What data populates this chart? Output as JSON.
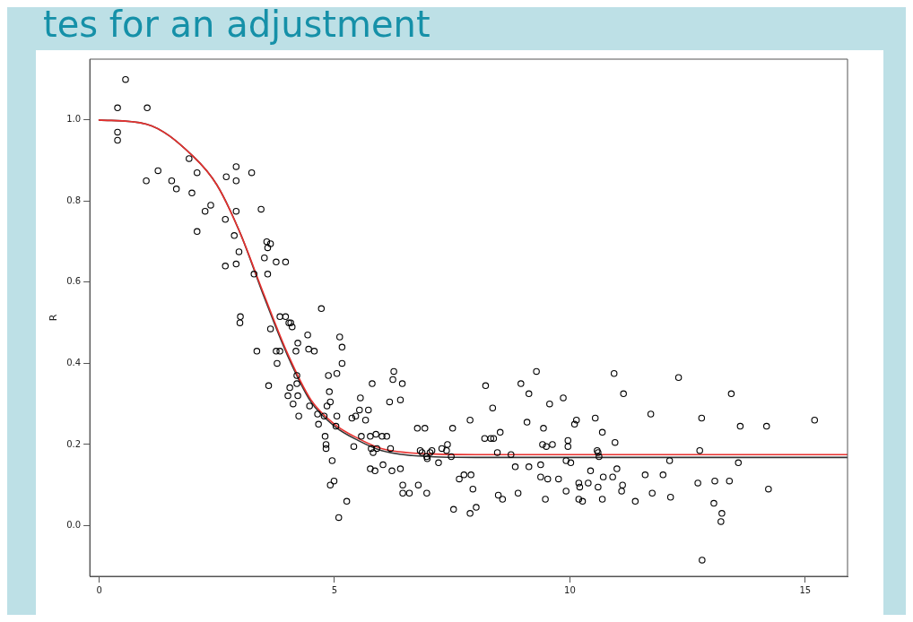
{
  "chart_data": {
    "type": "scatter",
    "title": "tes for an adjustment",
    "ylabel": "R",
    "xlim": [
      -0.2,
      15.9
    ],
    "ylim": [
      -0.125,
      1.15
    ],
    "xticks": [
      0,
      5,
      10,
      15
    ],
    "yticks": [
      {
        "value": 0,
        "label": "0.0"
      },
      0.2,
      0.4,
      0.6,
      0.8,
      {
        "value": 1,
        "label": "1.0"
      }
    ],
    "grid": false,
    "legend": false,
    "marker": "circle",
    "series": [
      {
        "type": "scatter",
        "color": "#000000",
        "x": [
          0.39,
          0.56,
          0.39,
          0.39,
          1.02,
          1.0,
          1.25,
          1.54,
          1.64,
          1.91,
          1.97,
          2.08,
          2.08,
          2.25,
          2.37,
          2.68,
          2.68,
          2.7,
          2.91,
          2.91,
          2.91,
          2.87,
          2.91,
          2.97,
          3.0,
          2.99,
          3.24,
          3.29,
          3.35,
          3.44,
          3.51,
          3.56,
          3.58,
          3.64,
          3.58,
          3.6,
          3.64,
          3.76,
          3.76,
          3.78,
          3.84,
          3.84,
          3.96,
          3.96,
          4.01,
          4.03,
          4.07,
          4.05,
          4.1,
          4.12,
          4.18,
          4.22,
          4.2,
          4.2,
          4.22,
          4.24,
          4.43,
          4.45,
          4.47,
          4.57,
          4.64,
          4.66,
          4.72,
          4.78,
          4.84,
          4.8,
          4.82,
          4.82,
          4.87,
          4.89,
          4.91,
          4.91,
          4.95,
          4.99,
          5.03,
          5.05,
          5.05,
          5.09,
          5.11,
          5.16,
          5.16,
          5.26,
          5.37,
          5.41,
          5.45,
          5.53,
          5.55,
          5.57,
          5.66,
          5.72,
          5.8,
          5.76,
          5.78,
          5.76,
          5.82,
          5.86,
          5.88,
          5.9,
          6.01,
          6.03,
          6.11,
          6.17,
          6.19,
          6.22,
          6.26,
          6.24,
          6.4,
          6.4,
          6.44,
          6.45,
          6.45,
          6.59,
          6.76,
          6.82,
          6.78,
          6.86,
          6.92,
          6.96,
          6.96,
          6.97,
          7.03,
          7.07,
          7.21,
          7.28,
          7.38,
          7.4,
          7.48,
          7.51,
          7.53,
          7.65,
          7.75,
          7.9,
          7.88,
          7.88,
          7.94,
          8.01,
          8.19,
          8.21,
          8.32,
          8.36,
          8.38,
          8.46,
          8.48,
          8.52,
          8.57,
          8.75,
          8.84,
          8.9,
          8.96,
          9.09,
          9.13,
          9.13,
          9.29,
          9.38,
          9.42,
          9.38,
          9.44,
          9.48,
          9.5,
          9.53,
          9.57,
          9.63,
          9.76,
          9.86,
          9.92,
          9.92,
          9.96,
          9.96,
          10.02,
          10.1,
          10.14,
          10.19,
          10.19,
          10.21,
          10.27,
          10.39,
          10.44,
          10.54,
          10.58,
          10.6,
          10.62,
          10.6,
          10.69,
          10.69,
          10.71,
          10.91,
          10.94,
          10.96,
          11.0,
          11.1,
          11.12,
          11.14,
          11.39,
          11.6,
          11.72,
          11.75,
          11.98,
          12.12,
          12.14,
          12.31,
          12.72,
          12.76,
          12.8,
          12.81,
          13.08,
          13.06,
          13.23,
          13.21,
          13.39,
          13.43,
          13.58,
          13.62,
          14.18,
          14.22,
          15.2
        ],
        "values": [
          1.03,
          1.1,
          0.97,
          0.95,
          1.03,
          0.85,
          0.875,
          0.85,
          0.83,
          0.905,
          0.82,
          0.87,
          0.725,
          0.775,
          0.79,
          0.755,
          0.64,
          0.86,
          0.885,
          0.85,
          0.775,
          0.715,
          0.645,
          0.675,
          0.515,
          0.5,
          0.87,
          0.62,
          0.43,
          0.78,
          0.66,
          0.7,
          0.685,
          0.695,
          0.62,
          0.345,
          0.485,
          0.65,
          0.43,
          0.4,
          0.515,
          0.43,
          0.65,
          0.515,
          0.32,
          0.5,
          0.5,
          0.34,
          0.49,
          0.3,
          0.43,
          0.45,
          0.37,
          0.35,
          0.32,
          0.27,
          0.47,
          0.435,
          0.295,
          0.43,
          0.275,
          0.25,
          0.535,
          0.27,
          0.295,
          0.22,
          0.2,
          0.19,
          0.37,
          0.33,
          0.305,
          0.1,
          0.16,
          0.11,
          0.245,
          0.375,
          0.27,
          0.02,
          0.465,
          0.44,
          0.4,
          0.06,
          0.265,
          0.195,
          0.27,
          0.285,
          0.315,
          0.22,
          0.26,
          0.285,
          0.35,
          0.22,
          0.19,
          0.14,
          0.18,
          0.135,
          0.225,
          0.19,
          0.22,
          0.15,
          0.22,
          0.305,
          0.19,
          0.135,
          0.38,
          0.36,
          0.14,
          0.31,
          0.35,
          0.1,
          0.08,
          0.08,
          0.24,
          0.185,
          0.1,
          0.18,
          0.24,
          0.08,
          0.17,
          0.165,
          0.18,
          0.185,
          0.155,
          0.19,
          0.185,
          0.2,
          0.17,
          0.24,
          0.04,
          0.115,
          0.125,
          0.125,
          0.26,
          0.03,
          0.09,
          0.045,
          0.215,
          0.345,
          0.215,
          0.29,
          0.215,
          0.18,
          0.075,
          0.23,
          0.065,
          0.175,
          0.145,
          0.08,
          0.35,
          0.255,
          0.325,
          0.145,
          0.38,
          0.12,
          0.2,
          0.15,
          0.24,
          0.065,
          0.195,
          0.115,
          0.3,
          0.2,
          0.115,
          0.315,
          0.16,
          0.085,
          0.195,
          0.21,
          0.155,
          0.25,
          0.26,
          0.105,
          0.065,
          0.095,
          0.06,
          0.105,
          0.135,
          0.265,
          0.185,
          0.18,
          0.17,
          0.095,
          0.065,
          0.23,
          0.12,
          0.12,
          0.375,
          0.205,
          0.14,
          0.085,
          0.1,
          0.325,
          0.06,
          0.125,
          0.275,
          0.08,
          0.125,
          0.16,
          0.07,
          0.365,
          0.105,
          0.185,
          0.265,
          -0.085,
          0.11,
          0.055,
          0.03,
          0.01,
          0.11,
          0.325,
          0.155,
          0.245,
          0.245,
          0.09,
          0.26
        ]
      },
      {
        "type": "line",
        "color": "#e8302e",
        "marker": "none",
        "x": [
          0,
          1,
          2,
          2.5,
          3,
          3.5,
          4,
          4.5,
          5,
          5.5,
          6,
          7,
          8,
          15.9
        ],
        "values": [
          1.0,
          0.99,
          0.91,
          0.84,
          0.72,
          0.57,
          0.425,
          0.31,
          0.25,
          0.215,
          0.19,
          0.177,
          0.175,
          0.175
        ]
      },
      {
        "type": "line",
        "color": "#333333",
        "marker": "none",
        "x": [
          0,
          1,
          2,
          2.5,
          3,
          3.5,
          4,
          4.5,
          5,
          5.5,
          6,
          7,
          8,
          15.9
        ],
        "values": [
          1.0,
          0.99,
          0.91,
          0.84,
          0.72,
          0.565,
          0.42,
          0.305,
          0.245,
          0.21,
          0.185,
          0.17,
          0.168,
          0.168
        ]
      }
    ]
  }
}
